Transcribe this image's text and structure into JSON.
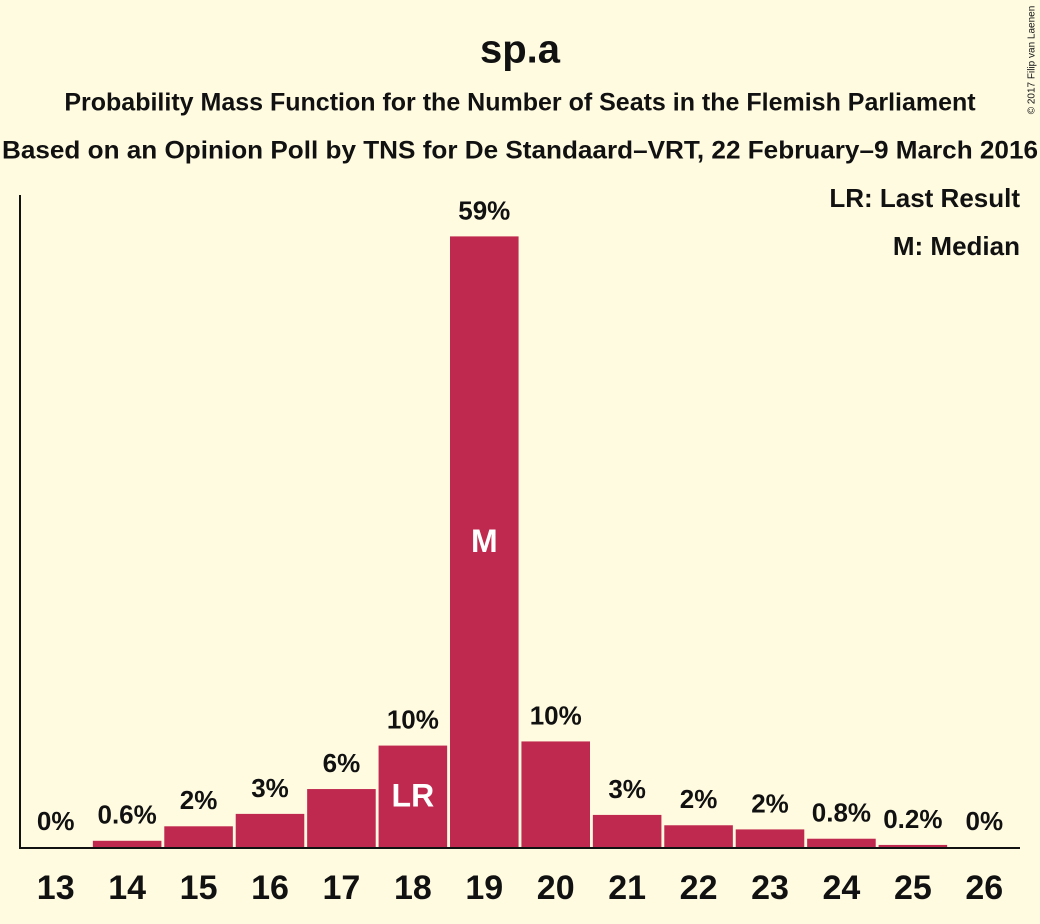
{
  "chart_data": {
    "type": "bar",
    "title": "sp.a",
    "subtitle": "Probability Mass Function for the Number of Seats in the Flemish Parliament",
    "subtitle2": "Based on an Opinion Poll by TNS for De Standaard–VRT, 22 February–9 March 2016",
    "credit": "© 2017 Filip van Laenen",
    "legend": [
      "LR: Last Result",
      "M: Median"
    ],
    "categories": [
      "13",
      "14",
      "15",
      "16",
      "17",
      "18",
      "19",
      "20",
      "21",
      "22",
      "23",
      "24",
      "25",
      "26"
    ],
    "values": [
      0,
      0.6,
      2,
      3.2,
      5.6,
      9.8,
      59,
      10.2,
      3.1,
      2.1,
      1.7,
      0.8,
      0.2,
      0
    ],
    "value_labels": [
      "0%",
      "0.6%",
      "2%",
      "3%",
      "6%",
      "10%",
      "59%",
      "10%",
      "3%",
      "2%",
      "2%",
      "0.8%",
      "0.2%",
      "0%"
    ],
    "bar_labels": [
      null,
      null,
      null,
      null,
      null,
      "LR",
      "M",
      null,
      null,
      null,
      null,
      null,
      null,
      null
    ],
    "color": "#c0294f",
    "ylim": [
      0,
      63
    ]
  }
}
